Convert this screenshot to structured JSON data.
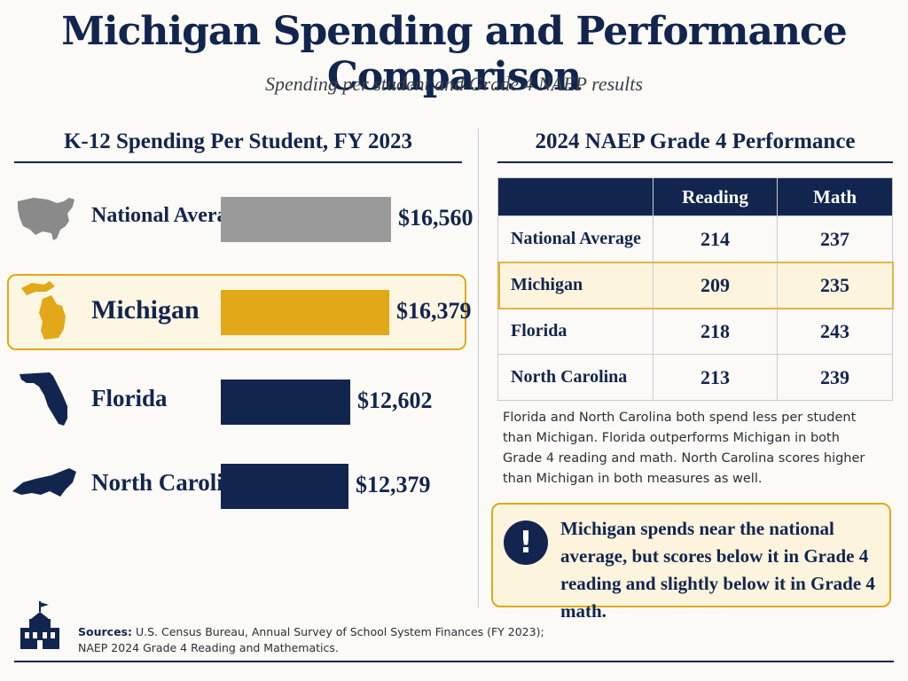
{
  "title": "Michigan Spending and Performance Comparison",
  "subtitle": "Spending per student and Grade 4 NAEP results",
  "colors": {
    "navy": "#12254f",
    "gold": "#e2a817",
    "gray": "#9a9a9a",
    "highlight_bg": "#fdf4de"
  },
  "chart_data": [
    {
      "type": "bar",
      "title": "K-12 Spending Per Student, FY 2023",
      "categories": [
        "National Average",
        "Michigan",
        "Florida",
        "North Carolina"
      ],
      "values": [
        16560,
        16379,
        12602,
        12379
      ],
      "value_labels": [
        "$16,560",
        "$16,379",
        "$12,602",
        "$12,379"
      ],
      "bar_colors": [
        "#9a9a9a",
        "#e2a817",
        "#12254f",
        "#12254f"
      ],
      "icons": [
        "usa-map-icon",
        "michigan-map-icon",
        "florida-map-icon",
        "north-carolina-map-icon"
      ],
      "highlight": "Michigan",
      "orientation": "horizontal",
      "xlim": [
        0,
        16560
      ],
      "grid": false
    },
    {
      "type": "table",
      "title": "2024 NAEP Grade 4 Performance",
      "columns": [
        "",
        "Reading",
        "Math"
      ],
      "rows": [
        {
          "label": "National Average",
          "reading": "214",
          "math": "237"
        },
        {
          "label": "Michigan",
          "reading": "209",
          "math": "235"
        },
        {
          "label": "Florida",
          "reading": "218",
          "math": "243"
        },
        {
          "label": "North Carolina",
          "reading": "213",
          "math": "239"
        }
      ],
      "highlight": "Michigan"
    }
  ],
  "note": "Florida and North Carolina both spend less per student than Michigan. Florida outperforms Michigan in both Grade 4 reading and math. North Carolina scores higher than Michigan in both measures as well.",
  "callout": {
    "icon": "exclamation-icon",
    "text": "Michigan spends near the national average, but scores below it in Grade 4 reading and slightly below it in Grade 4 math."
  },
  "sources": {
    "label": "Sources:",
    "text": "U.S. Census Bureau, Annual Survey of School System Finances (FY 2023); NAEP 2024 Grade 4 Reading and Mathematics.",
    "icon": "school-building-icon"
  }
}
